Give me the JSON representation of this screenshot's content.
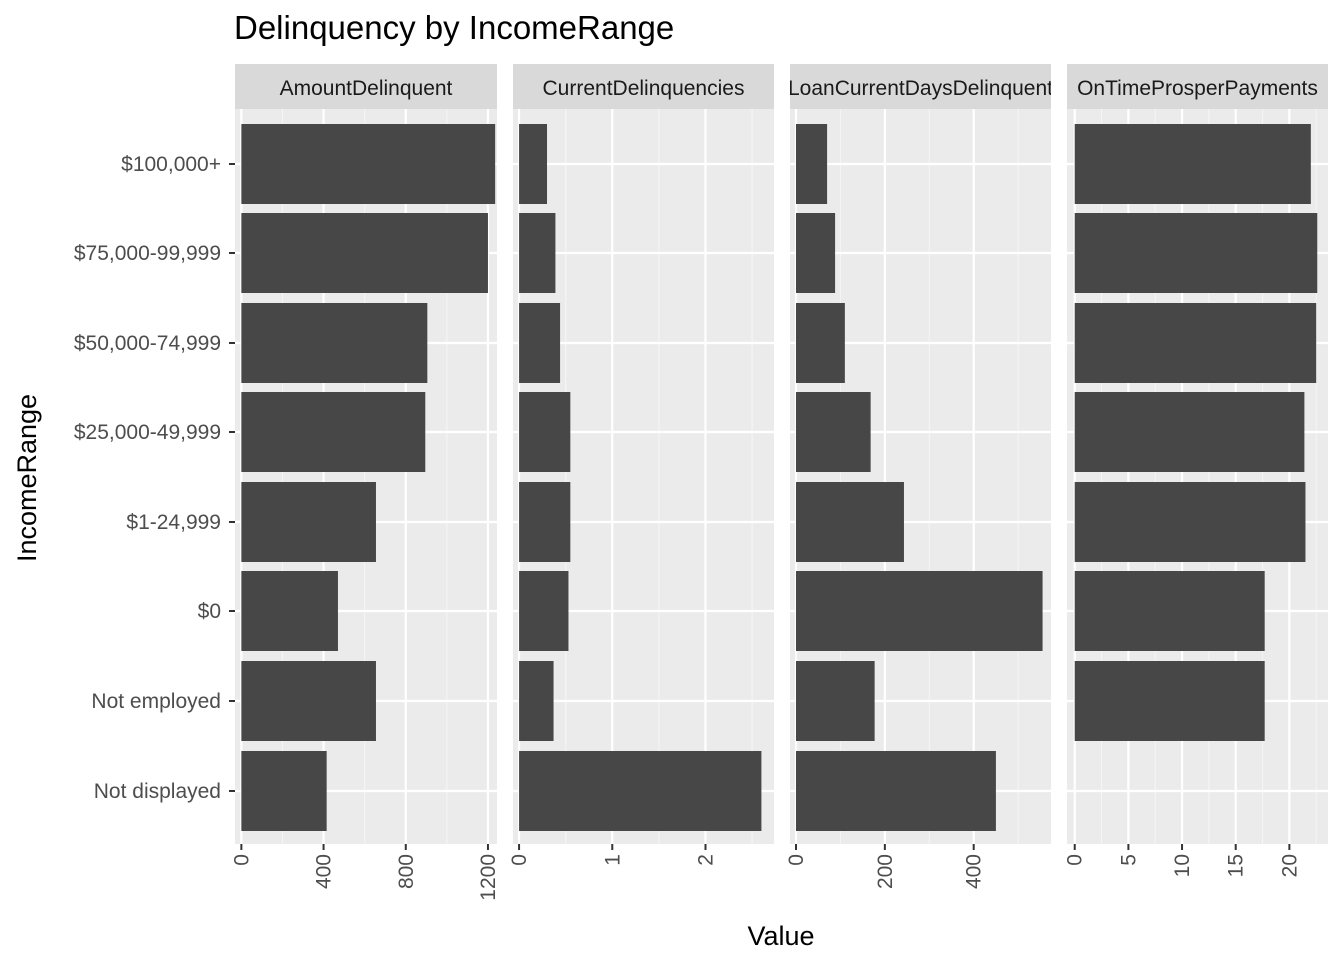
{
  "chart_data": {
    "type": "bar",
    "orientation": "horizontal",
    "title": "Delinquency by IncomeRange",
    "xlabel": "Value",
    "ylabel": "IncomeRange",
    "grid": true,
    "categories": [
      "$100,000+",
      "$75,000-99,999",
      "$50,000-74,999",
      "$25,000-49,999",
      "$1-24,999",
      "$0",
      "Not employed",
      "Not displayed"
    ],
    "panels": [
      {
        "facet": "AmountDelinquent",
        "xlim": [
          -31,
          1244
        ],
        "ticks": [
          0,
          400,
          800,
          1200
        ],
        "tick_labels": [
          "0",
          "400",
          "800",
          "1200"
        ],
        "values": [
          1235,
          1200,
          905,
          895,
          655,
          470,
          655,
          415
        ]
      },
      {
        "facet": "CurrentDelinquencies",
        "xlim": [
          -0.065,
          2.735
        ],
        "ticks": [
          0,
          1,
          2
        ],
        "tick_labels": [
          "0",
          "1",
          "2"
        ],
        "values": [
          0.3,
          0.39,
          0.44,
          0.55,
          0.55,
          0.53,
          0.37,
          2.6
        ]
      },
      {
        "facet": "LoanCurrentDaysDelinquent",
        "xlim": [
          -13.5,
          574
        ],
        "ticks": [
          0,
          200,
          400
        ],
        "tick_labels": [
          "0",
          "200",
          "400"
        ],
        "values": [
          70,
          88,
          110,
          168,
          243,
          555,
          177,
          450
        ]
      },
      {
        "facet": "OnTimeProsperPayments",
        "xlim": [
          -0.72,
          23.6
        ],
        "ticks": [
          0,
          5,
          10,
          15,
          20
        ],
        "tick_labels": [
          "0",
          "5",
          "10",
          "15",
          "20"
        ],
        "values": [
          22.0,
          22.6,
          22.5,
          21.4,
          21.5,
          17.7,
          17.7,
          null
        ]
      }
    ]
  }
}
